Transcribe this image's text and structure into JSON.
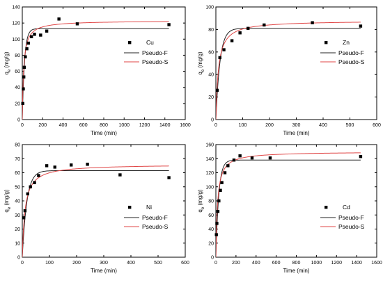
{
  "chart_data": [
    {
      "id": "cu",
      "type": "scatter",
      "xlabel": "Time (min)",
      "ylabel": [
        "q",
        "e",
        " (mg/g)"
      ],
      "xlim": [
        0,
        1600
      ],
      "ylim": [
        0,
        140
      ],
      "xticks": [
        0,
        200,
        400,
        600,
        800,
        1000,
        1200,
        1400,
        1600
      ],
      "yticks": [
        0,
        20,
        40,
        60,
        80,
        100,
        120,
        140
      ],
      "colors": {
        "points": "#000000",
        "pseudo_f": "#222222",
        "pseudo_s": "#e04646"
      },
      "legend_position": "center-right",
      "legend": {
        "points": "Cu",
        "pseudo_f": "Pseudo-F",
        "pseudo_s": "Pseudo-S"
      },
      "series": [
        {
          "name": "Cu",
          "kind": "points",
          "x": [
            5,
            10,
            15,
            20,
            30,
            45,
            60,
            90,
            120,
            180,
            240,
            360,
            540,
            1440
          ],
          "y": [
            20,
            38,
            53,
            65,
            78,
            88,
            95,
            103,
            106,
            105,
            110,
            125,
            119,
            118
          ]
        },
        {
          "name": "Pseudo-F",
          "kind": "pfo",
          "qe": 113,
          "k": 0.045
        },
        {
          "name": "Pseudo-S",
          "kind": "pso",
          "qe": 123,
          "k": 0.0006
        }
      ]
    },
    {
      "id": "zn",
      "type": "scatter",
      "xlabel": "Time (min)",
      "ylabel": [
        "q",
        "e",
        " (mg/g)"
      ],
      "xlim": [
        0,
        600
      ],
      "ylim": [
        0,
        100
      ],
      "xticks": [
        0,
        100,
        200,
        300,
        400,
        500,
        600
      ],
      "yticks": [
        0,
        20,
        40,
        60,
        80,
        100
      ],
      "colors": {
        "points": "#000000",
        "pseudo_f": "#222222",
        "pseudo_s": "#e04646"
      },
      "legend_position": "center-right",
      "legend": {
        "points": "Zn",
        "pseudo_f": "Pseudo-F",
        "pseudo_s": "Pseudo-S"
      },
      "series": [
        {
          "name": "Zn",
          "kind": "points",
          "x": [
            5,
            15,
            30,
            60,
            90,
            120,
            180,
            360,
            540
          ],
          "y": [
            26,
            55,
            62,
            70,
            77,
            81,
            84,
            86,
            83
          ]
        },
        {
          "name": "Pseudo-F",
          "kind": "pfo",
          "qe": 81,
          "k": 0.065
        },
        {
          "name": "Pseudo-S",
          "kind": "pso",
          "qe": 88,
          "k": 0.0012
        }
      ]
    },
    {
      "id": "ni",
      "type": "scatter",
      "xlabel": "Time (min)",
      "ylabel": [
        "q",
        "e",
        " (mg/g)"
      ],
      "xlim": [
        0,
        600
      ],
      "ylim": [
        0,
        80
      ],
      "xticks": [
        0,
        100,
        200,
        300,
        400,
        500,
        600
      ],
      "yticks": [
        0,
        10,
        20,
        30,
        40,
        50,
        60,
        70,
        80
      ],
      "colors": {
        "points": "#000000",
        "pseudo_f": "#222222",
        "pseudo_s": "#e04646"
      },
      "legend_position": "center-right",
      "legend": {
        "points": "Ni",
        "pseudo_f": "Pseudo-F",
        "pseudo_s": "Pseudo-S"
      },
      "series": [
        {
          "name": "Ni",
          "kind": "points",
          "x": [
            5,
            10,
            20,
            30,
            45,
            60,
            90,
            120,
            180,
            240,
            360,
            540
          ],
          "y": [
            28,
            33,
            45,
            50,
            53,
            58,
            65,
            64,
            65.5,
            66,
            58.5,
            56.5
          ]
        },
        {
          "name": "Pseudo-F",
          "kind": "pfo",
          "qe": 61.5,
          "k": 0.06
        },
        {
          "name": "Pseudo-S",
          "kind": "pso",
          "qe": 66,
          "k": 0.0015
        }
      ]
    },
    {
      "id": "cd",
      "type": "scatter",
      "xlabel": "Time (min)",
      "ylabel": [
        "q",
        "e",
        " (mg/g)"
      ],
      "xlim": [
        0,
        1600
      ],
      "ylim": [
        0,
        160
      ],
      "xticks": [
        0,
        200,
        400,
        600,
        800,
        1000,
        1200,
        1400,
        1600
      ],
      "yticks": [
        0,
        20,
        40,
        60,
        80,
        100,
        120,
        140,
        160
      ],
      "colors": {
        "points": "#000000",
        "pseudo_f": "#222222",
        "pseudo_s": "#e04646"
      },
      "legend_position": "center-right",
      "legend": {
        "points": "Cd",
        "pseudo_f": "Pseudo-F",
        "pseudo_s": "Pseudo-S"
      },
      "series": [
        {
          "name": "Cd",
          "kind": "points",
          "x": [
            5,
            10,
            20,
            30,
            45,
            60,
            90,
            120,
            180,
            240,
            360,
            540,
            1440
          ],
          "y": [
            32,
            48,
            65,
            80,
            95,
            106,
            120,
            130,
            138,
            144,
            141,
            141,
            143
          ]
        },
        {
          "name": "Pseudo-F",
          "kind": "pfo",
          "qe": 138,
          "k": 0.035
        },
        {
          "name": "Pseudo-S",
          "kind": "pso",
          "qe": 150,
          "k": 0.0004
        }
      ]
    }
  ]
}
